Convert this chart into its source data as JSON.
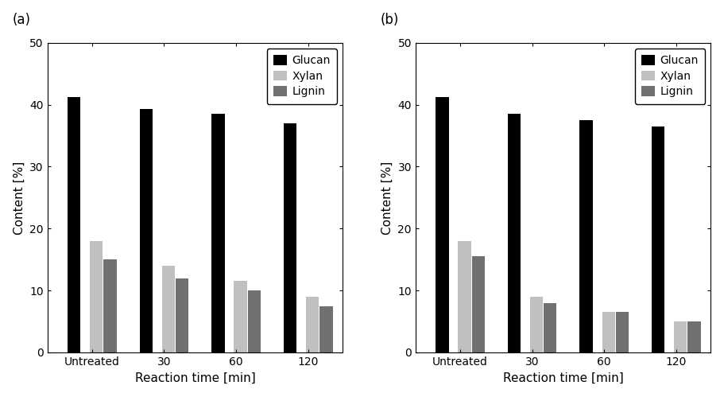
{
  "panel_a": {
    "label": "(a)",
    "categories": [
      "Untreated",
      "30",
      "60",
      "120"
    ],
    "glucan": [
      41.3,
      39.3,
      38.5,
      37.0
    ],
    "xylan": [
      18.0,
      14.0,
      11.5,
      9.0
    ],
    "lignin": [
      15.0,
      12.0,
      10.0,
      7.5
    ]
  },
  "panel_b": {
    "label": "(b)",
    "categories": [
      "Untreated",
      "30",
      "60",
      "120"
    ],
    "glucan": [
      41.3,
      38.5,
      37.5,
      36.5
    ],
    "xylan": [
      18.0,
      9.0,
      6.5,
      5.0
    ],
    "lignin": [
      15.5,
      8.0,
      6.5,
      5.0
    ]
  },
  "colors": {
    "glucan": "#000000",
    "xylan": "#c0c0c0",
    "lignin": "#707070"
  },
  "legend_labels": [
    "Glucan",
    "Xylan",
    "Lignin"
  ],
  "ylabel": "Content [%]",
  "xlabel": "Reaction time [min]",
  "ylim": [
    0,
    50
  ],
  "yticks": [
    0,
    10,
    20,
    30,
    40,
    50
  ],
  "bar_width": 0.18,
  "label_fontsize": 11,
  "tick_fontsize": 10,
  "legend_fontsize": 10,
  "panel_label_fontsize": 12
}
